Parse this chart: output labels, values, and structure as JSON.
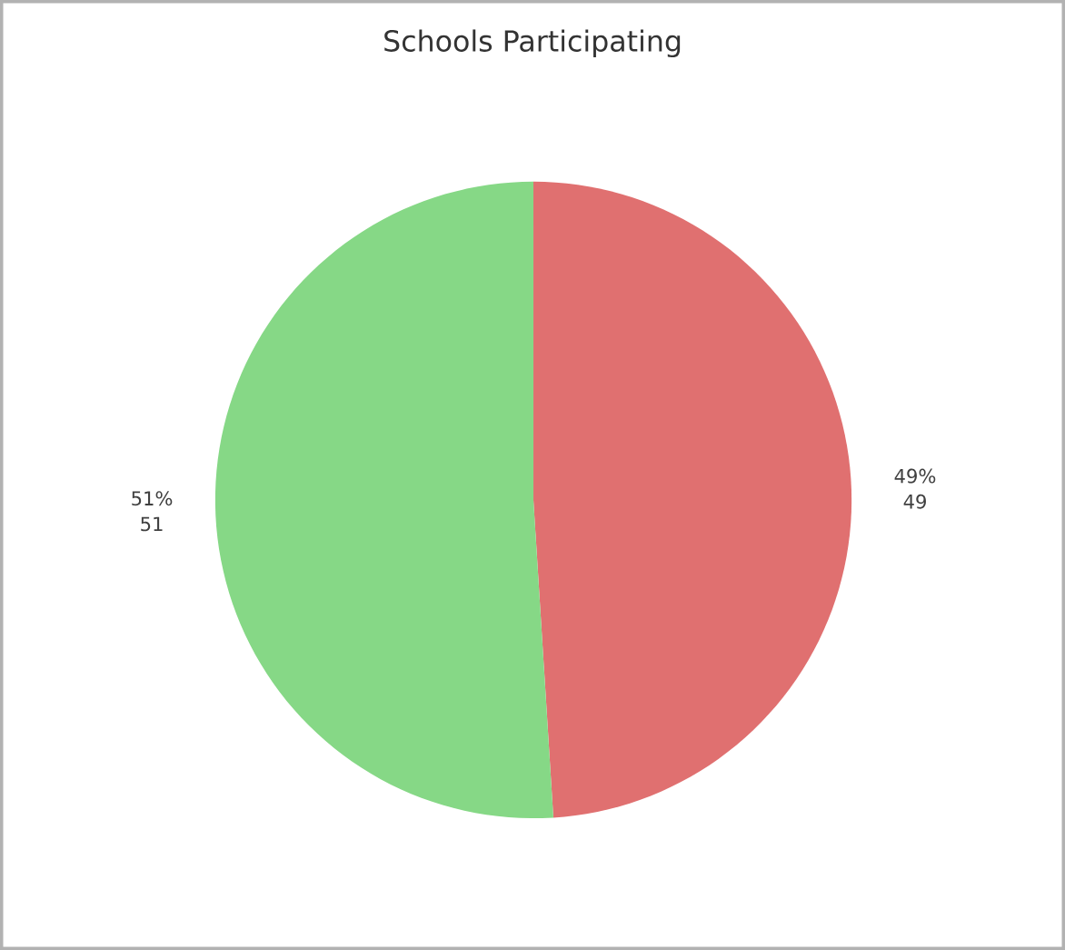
{
  "chart_data": {
    "type": "pie",
    "title": "Schools Participating",
    "categories": [
      null,
      null
    ],
    "values": [
      49,
      51
    ],
    "colors": [
      "#e07070",
      "#86d886"
    ],
    "value_labels": [
      "49% 49",
      "51% 51"
    ]
  }
}
